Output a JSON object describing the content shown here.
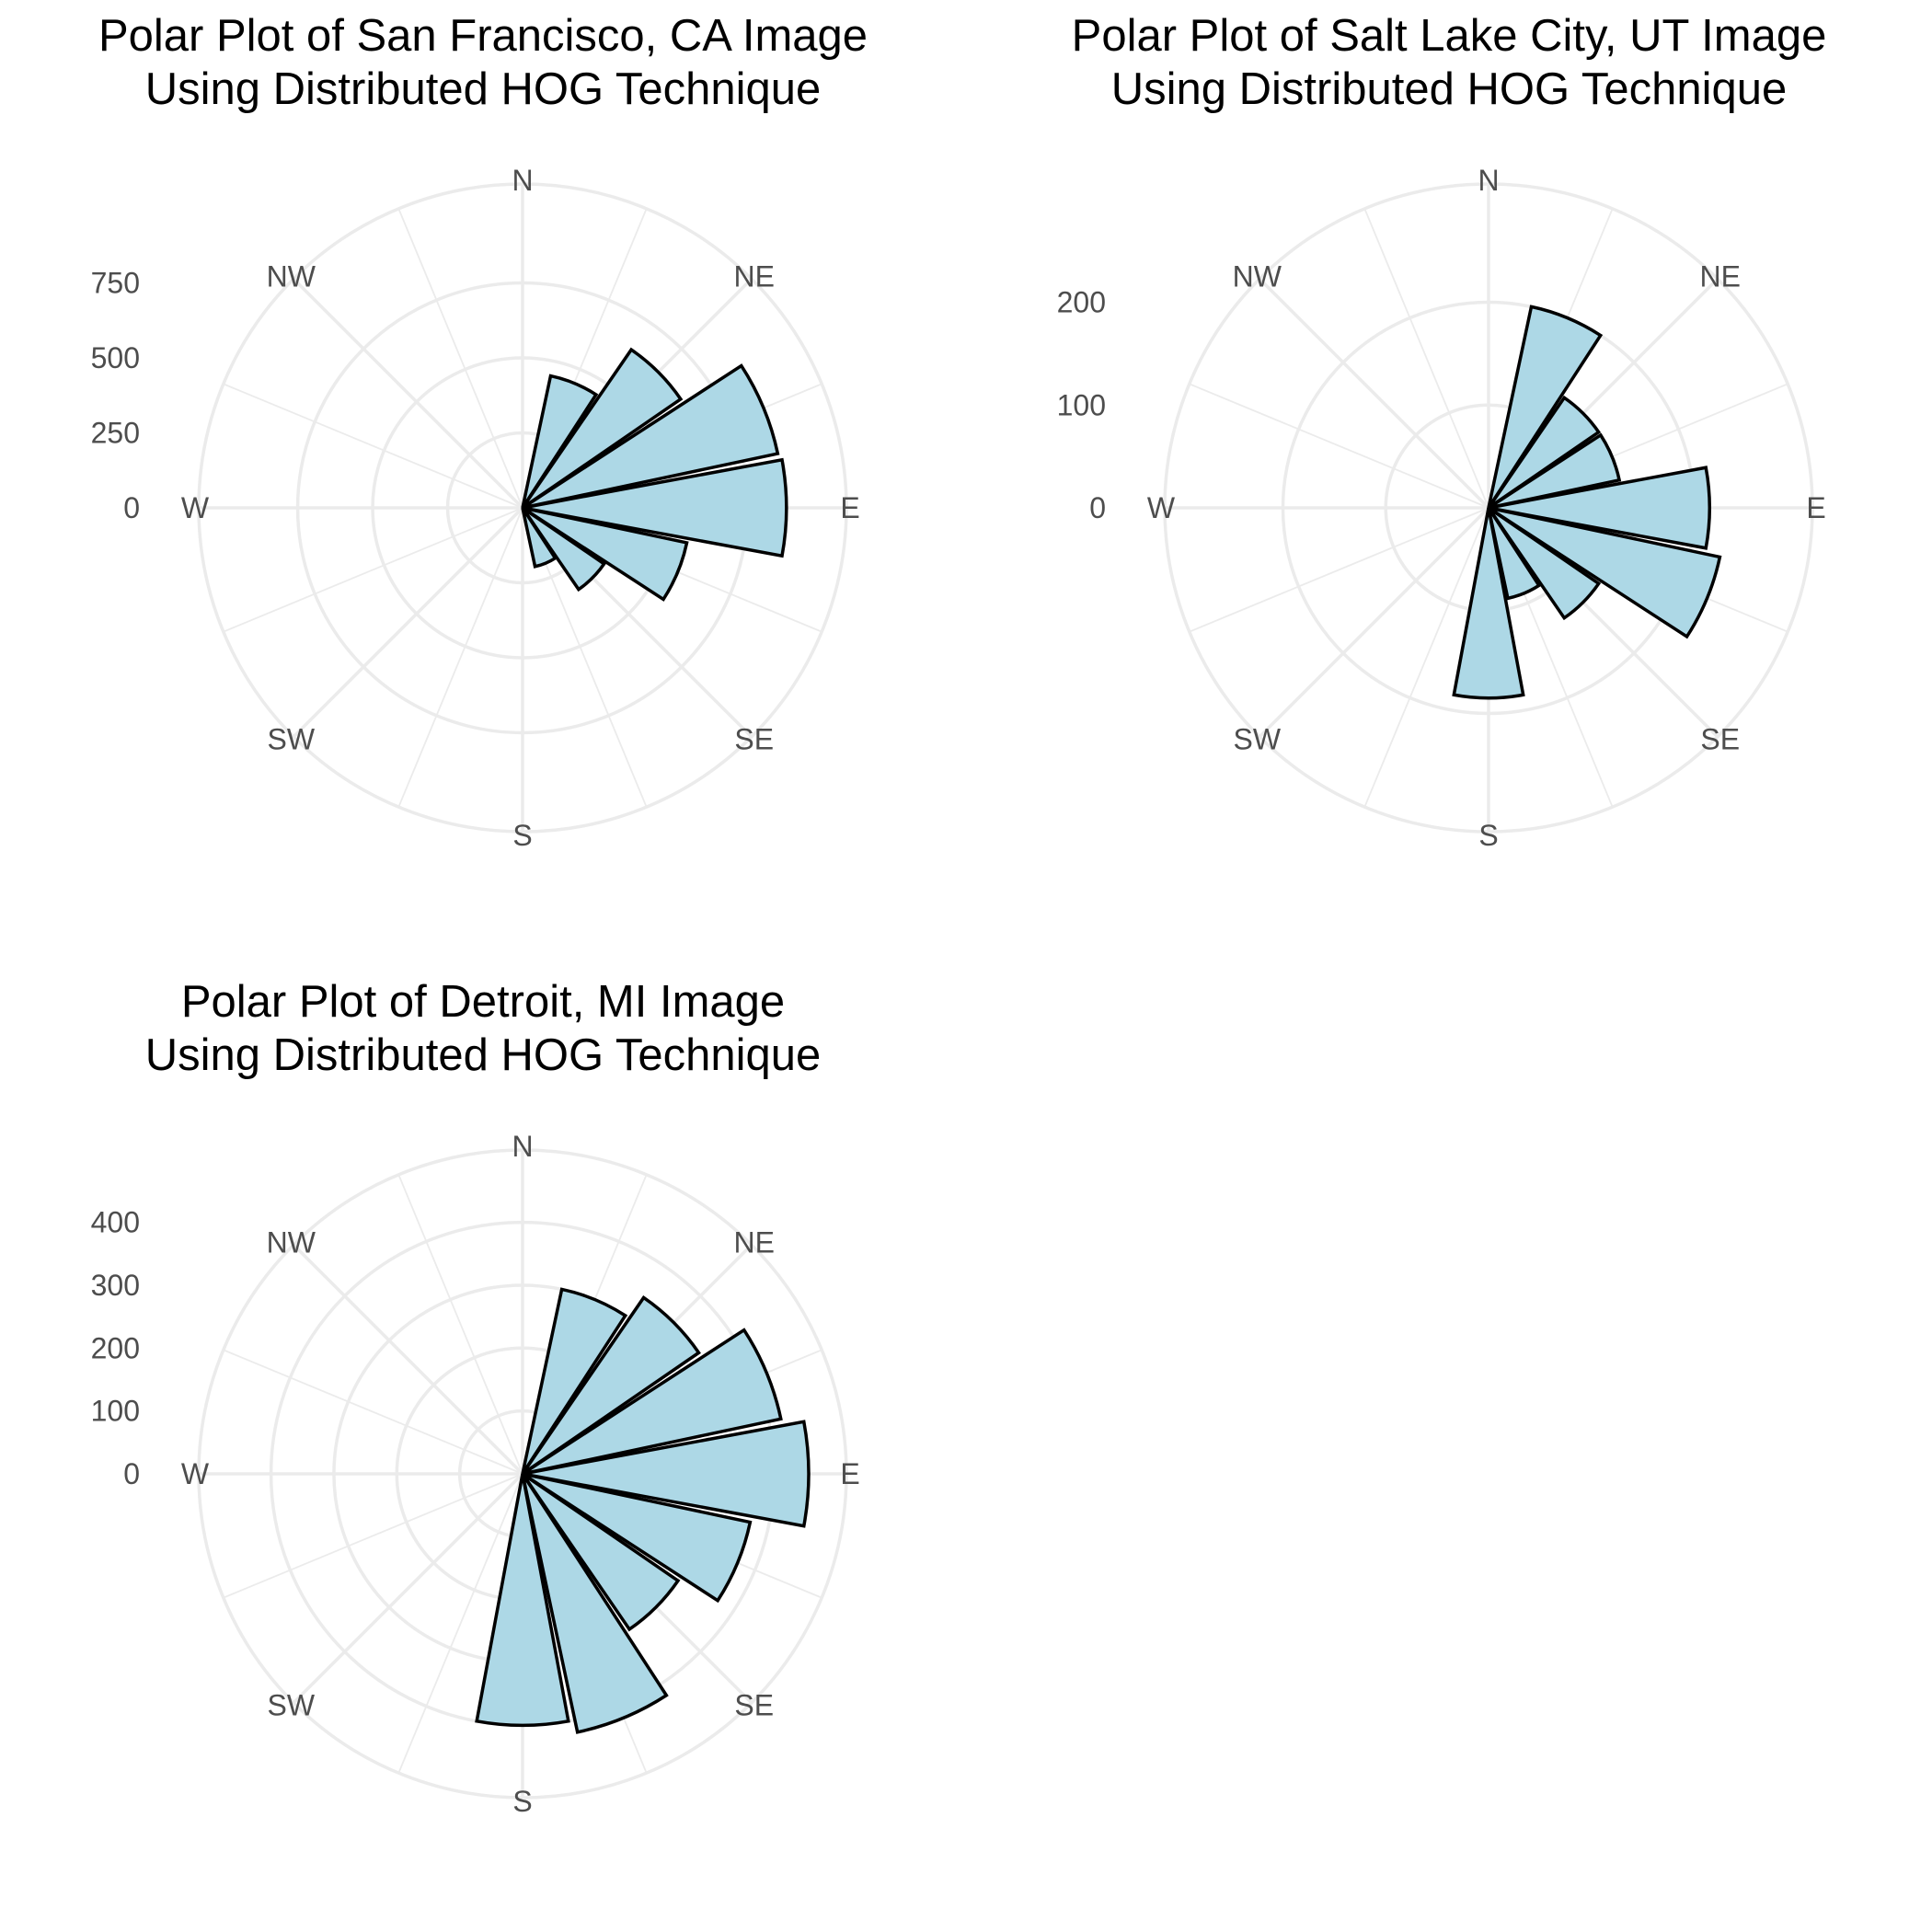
{
  "chart_data": [
    {
      "type": "bar",
      "coord": "polar",
      "title_line1": "Polar Plot of San Francisco, CA Image",
      "title_line2": "Using Distributed HOG Technique",
      "direction_labels": [
        "N",
        "NE",
        "E",
        "SE",
        "S",
        "SW",
        "W",
        "NW"
      ],
      "bin_centers_deg": [
        0,
        22.5,
        45,
        67.5,
        90,
        112.5,
        135,
        157.5,
        180,
        202.5,
        225,
        247.5,
        270,
        292.5,
        315,
        337.5
      ],
      "values": [
        0,
        450,
        640,
        870,
        880,
        560,
        330,
        200,
        0,
        0,
        0,
        0,
        0,
        0,
        0,
        0
      ],
      "r_ticks": [
        0,
        250,
        500,
        750
      ],
      "r_max": 1080,
      "fill_color": "#add8e6",
      "grid": true
    },
    {
      "type": "bar",
      "coord": "polar",
      "title_line1": "Polar Plot of Salt Lake City, UT Image",
      "title_line2": "Using Distributed HOG Technique",
      "direction_labels": [
        "N",
        "NE",
        "E",
        "SE",
        "S",
        "SW",
        "W",
        "NW"
      ],
      "bin_centers_deg": [
        0,
        22.5,
        45,
        67.5,
        90,
        112.5,
        135,
        157.5,
        180,
        202.5,
        225,
        247.5,
        270,
        292.5,
        315,
        337.5
      ],
      "values": [
        0,
        200,
        130,
        130,
        215,
        230,
        130,
        90,
        185,
        0,
        0,
        0,
        0,
        0,
        0,
        0
      ],
      "r_ticks": [
        0,
        100,
        200
      ],
      "r_max": 315,
      "fill_color": "#add8e6",
      "grid": true
    },
    {
      "type": "bar",
      "coord": "polar",
      "title_line1": "Polar Plot of Detroit, MI Image",
      "title_line2": "Using Distributed HOG Technique",
      "direction_labels": [
        "N",
        "NE",
        "E",
        "SE",
        "S",
        "SW",
        "W",
        "NW"
      ],
      "bin_centers_deg": [
        0,
        22.5,
        45,
        67.5,
        90,
        112.5,
        135,
        157.5,
        180,
        202.5,
        225,
        247.5,
        270,
        292.5,
        315,
        337.5
      ],
      "values": [
        0,
        300,
        340,
        420,
        455,
        370,
        300,
        420,
        400,
        0,
        0,
        0,
        0,
        0,
        0,
        0
      ],
      "r_ticks": [
        0,
        100,
        200,
        300,
        400
      ],
      "r_max": 515,
      "fill_color": "#add8e6",
      "grid": true
    }
  ]
}
